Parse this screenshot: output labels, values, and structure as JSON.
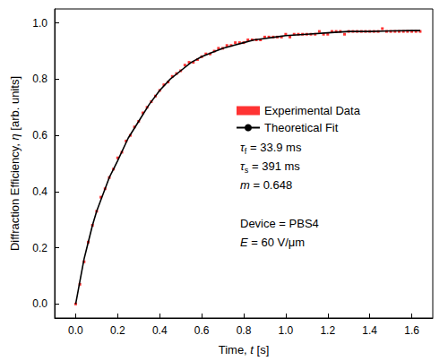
{
  "chart_data": {
    "type": "scatter",
    "xlabel": [
      {
        "text": "Time, "
      },
      {
        "text": "t",
        "style": "italic"
      },
      {
        "text": " [s]"
      }
    ],
    "ylabel": [
      {
        "text": "Diffraction Efficiency, "
      },
      {
        "text": "η",
        "style": "italic"
      },
      {
        "text": " [arb. units]"
      }
    ],
    "xlim": [
      -0.1,
      1.7
    ],
    "xticks": [
      {
        "value": 0,
        "label": "0.0"
      },
      0.2,
      0.4,
      0.6,
      0.8,
      {
        "value": 1,
        "label": "1.0"
      },
      1.2,
      1.4,
      1.6
    ],
    "ylim": [
      -0.05,
      1.05
    ],
    "yticks": [
      {
        "value": 0,
        "label": "0.0"
      },
      0.2,
      0.4,
      0.6,
      0.8,
      {
        "value": 1,
        "label": "1.0"
      }
    ],
    "grid": false,
    "legend": "right",
    "series": [
      {
        "name": "Experimental Data",
        "type": "scatter",
        "color": "#ff0000",
        "marker": "square",
        "x": [
          0.0,
          0.02,
          0.04,
          0.06,
          0.08,
          0.1,
          0.12,
          0.14,
          0.16,
          0.18,
          0.2,
          0.22,
          0.24,
          0.26,
          0.28,
          0.3,
          0.32,
          0.34,
          0.36,
          0.38,
          0.4,
          0.42,
          0.44,
          0.46,
          0.48,
          0.5,
          0.52,
          0.54,
          0.56,
          0.58,
          0.6,
          0.62,
          0.64,
          0.66,
          0.68,
          0.7,
          0.72,
          0.74,
          0.76,
          0.78,
          0.8,
          0.82,
          0.84,
          0.86,
          0.88,
          0.9,
          0.92,
          0.94,
          0.96,
          0.98,
          1.0,
          1.02,
          1.04,
          1.06,
          1.08,
          1.1,
          1.12,
          1.14,
          1.16,
          1.18,
          1.2,
          1.22,
          1.24,
          1.26,
          1.28,
          1.3,
          1.32,
          1.34,
          1.36,
          1.38,
          1.4,
          1.42,
          1.44,
          1.46,
          1.48,
          1.5,
          1.52,
          1.54,
          1.56,
          1.58,
          1.6,
          1.62,
          1.64
        ],
        "values": [
          0.0,
          0.07,
          0.15,
          0.22,
          0.28,
          0.33,
          0.38,
          0.41,
          0.45,
          0.48,
          0.52,
          0.54,
          0.58,
          0.6,
          0.63,
          0.65,
          0.68,
          0.7,
          0.72,
          0.74,
          0.76,
          0.78,
          0.79,
          0.81,
          0.82,
          0.83,
          0.85,
          0.86,
          0.86,
          0.87,
          0.88,
          0.89,
          0.89,
          0.9,
          0.91,
          0.91,
          0.92,
          0.92,
          0.93,
          0.93,
          0.93,
          0.94,
          0.94,
          0.94,
          0.94,
          0.95,
          0.95,
          0.95,
          0.95,
          0.95,
          0.96,
          0.95,
          0.96,
          0.96,
          0.96,
          0.96,
          0.96,
          0.96,
          0.97,
          0.96,
          0.96,
          0.97,
          0.97,
          0.97,
          0.96,
          0.97,
          0.97,
          0.97,
          0.97,
          0.97,
          0.97,
          0.97,
          0.97,
          0.98,
          0.97,
          0.97,
          0.97,
          0.97,
          0.97,
          0.97,
          0.97,
          0.97,
          0.97
        ]
      },
      {
        "name": "Theoretical Fit",
        "type": "line",
        "color": "#000000",
        "line_style": "solid",
        "x": [
          0.0,
          0.01,
          0.02,
          0.03,
          0.04,
          0.05,
          0.06,
          0.08,
          0.1,
          0.12,
          0.14,
          0.16,
          0.18,
          0.2,
          0.25,
          0.3,
          0.35,
          0.4,
          0.45,
          0.5,
          0.55,
          0.6,
          0.65,
          0.7,
          0.75,
          0.8,
          0.85,
          0.9,
          0.95,
          1.0,
          1.1,
          1.2,
          1.3,
          1.4,
          1.5,
          1.6,
          1.64
        ],
        "values": [
          0.0,
          0.04,
          0.08,
          0.12,
          0.16,
          0.19,
          0.22,
          0.28,
          0.33,
          0.37,
          0.41,
          0.45,
          0.48,
          0.51,
          0.59,
          0.65,
          0.71,
          0.76,
          0.8,
          0.83,
          0.86,
          0.88,
          0.895,
          0.91,
          0.92,
          0.93,
          0.94,
          0.945,
          0.95,
          0.955,
          0.96,
          0.965,
          0.97,
          0.97,
          0.972,
          0.973,
          0.973
        ]
      }
    ],
    "annotations": [
      [
        {
          "text": "τ",
          "style": "italic"
        },
        {
          "text": "f",
          "style": "subscript"
        },
        {
          "text": " = 33.9 ms"
        }
      ],
      [
        {
          "text": "τ",
          "style": "italic"
        },
        {
          "text": "s",
          "style": "subscript"
        },
        {
          "text": " = 391 ms"
        }
      ],
      [
        {
          "text": "m",
          "style": "italic"
        },
        {
          "text": " = 0.648"
        }
      ],
      [
        {
          "text": "Device = PBS4"
        }
      ],
      [
        {
          "text": "E",
          "style": "italic"
        },
        {
          "text": " = 60 V/μm"
        }
      ]
    ]
  }
}
